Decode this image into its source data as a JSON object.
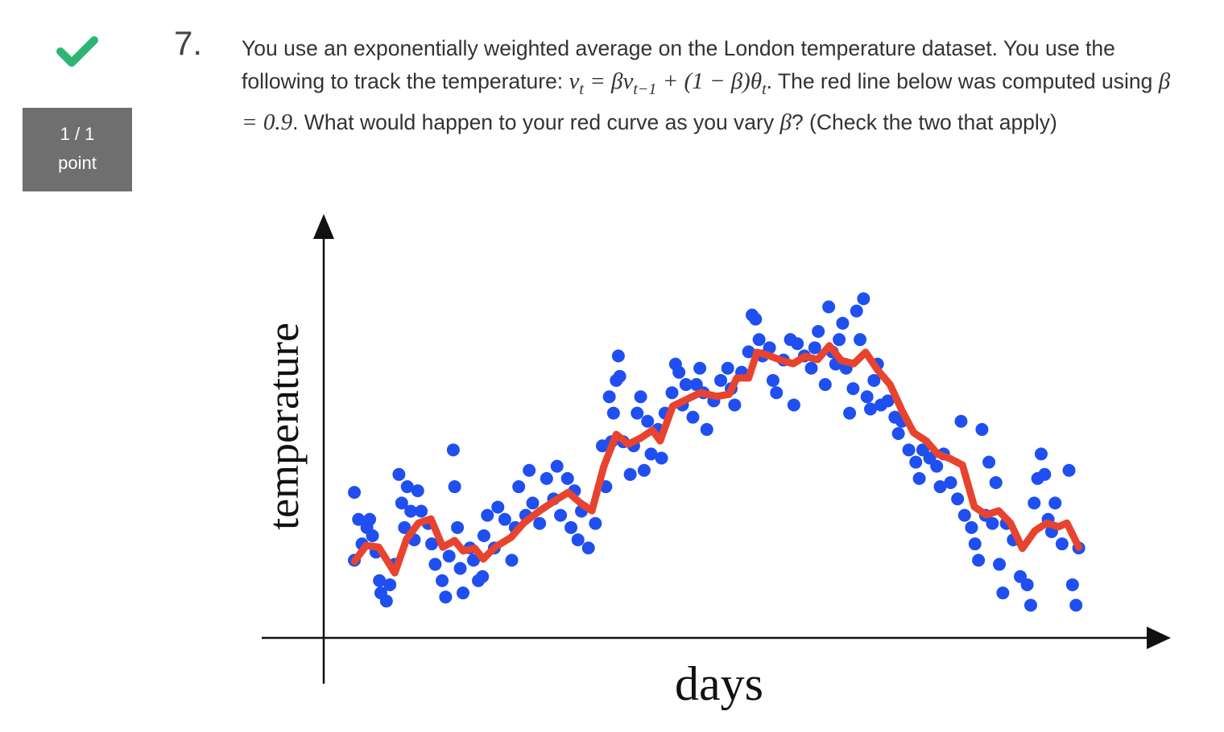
{
  "question": {
    "number": "7.",
    "score": "1 / 1",
    "score_unit": "point",
    "stem": [
      "You use an exponentially weighted average on the London temperature dataset. You use the following to track the temperature: ",
      "v",
      "t",
      " = β",
      "v",
      "t−1",
      " + (1 − β)θ",
      "t",
      ". The red line below was computed using ",
      "β = 0.9",
      ". What would happen to your red curve as you vary ",
      "β",
      "? (Check the two that apply)"
    ]
  },
  "chart_data": {
    "type": "scatter",
    "xlabel": "days",
    "ylabel": "temperature",
    "xlim": [
      0,
      120
    ],
    "ylim": [
      0,
      100
    ],
    "series": [
      {
        "type": "scatter",
        "color": "#1f4ff0",
        "x": [
          4.4,
          4.4,
          5,
          5.5,
          6.2,
          6.6,
          7,
          7.5,
          8,
          8.2,
          9,
          9.5,
          10.2,
          10.8,
          11.2,
          11.6,
          12,
          12.5,
          13,
          13.5,
          14,
          15,
          15.5,
          16,
          17,
          17.5,
          18,
          18.6,
          18.8,
          19.2,
          19.6,
          20,
          21,
          21.5,
          22.2,
          22.8,
          23,
          23.5,
          24.5,
          25,
          26,
          27,
          27.5,
          28,
          29,
          29.5,
          30,
          31,
          32,
          33,
          33.5,
          34,
          35,
          35.5,
          36,
          36.5,
          37,
          38,
          39,
          40,
          40.5,
          41,
          41.3,
          41.6,
          42,
          42.3,
          42.5,
          43,
          44,
          44.5,
          45,
          45.5,
          46,
          46.5,
          47,
          48,
          48.5,
          49,
          50,
          50.5,
          51,
          51.5,
          52,
          53,
          53.5,
          54,
          54.5,
          55,
          56,
          57,
          58,
          58.5,
          59,
          60,
          61,
          61.5,
          62,
          62.5,
          63,
          64,
          64.5,
          65,
          66,
          67,
          67.5,
          68,
          69,
          70,
          70.5,
          71,
          72,
          72.5,
          73,
          73.5,
          74,
          74.5,
          75,
          75.5,
          76,
          76.5,
          77,
          77.5,
          78,
          78.5,
          79,
          79.5,
          80,
          81,
          82,
          82.5,
          83,
          84,
          85,
          85.5,
          86,
          87,
          88,
          88.5,
          89,
          90,
          91,
          91.5,
          92,
          93,
          93.5,
          94,
          94.5,
          95,
          95.5,
          96,
          96.5,
          97,
          97.5,
          98,
          99,
          100,
          101,
          101.5,
          102,
          102.5,
          103,
          103.5,
          104,
          104.5,
          105,
          106,
          107,
          107.5,
          108,
          108.4
        ],
        "values": [
          35.6,
          19,
          29,
          23,
          27,
          29,
          25,
          21,
          14,
          11,
          9,
          13,
          18,
          40,
          33,
          27,
          37,
          31,
          24,
          36,
          31,
          28,
          23,
          18,
          14,
          10,
          20,
          46,
          37,
          27,
          17,
          11,
          22,
          19,
          14,
          15,
          25,
          30,
          22,
          32,
          29,
          19,
          27,
          37,
          30,
          41,
          33,
          28,
          39,
          34,
          42,
          30,
          39,
          27,
          36,
          24,
          31,
          22,
          28,
          47,
          37,
          59,
          48,
          55,
          63,
          69,
          64,
          48,
          40,
          47,
          55,
          59,
          41,
          53,
          45,
          51,
          44,
          55,
          60,
          67,
          65,
          57,
          62,
          54,
          62,
          66,
          60,
          51,
          58,
          63,
          66,
          61,
          57,
          65,
          70,
          79,
          78,
          73,
          69,
          71,
          63,
          60,
          68,
          73,
          57,
          72,
          69,
          66,
          71,
          75,
          62,
          81,
          70,
          67,
          73,
          77,
          66,
          55,
          61,
          80,
          73,
          83,
          59,
          56,
          63,
          67,
          57,
          58,
          54,
          50,
          53,
          46,
          43,
          39,
          46,
          44,
          42,
          37,
          45,
          38,
          34,
          53,
          30,
          27,
          23,
          19,
          51,
          30,
          43,
          28,
          38,
          18,
          11,
          28,
          24,
          15,
          13,
          8,
          33,
          39,
          45,
          40,
          29,
          26,
          33,
          23,
          41,
          13,
          8,
          22
        ]
      },
      {
        "type": "line",
        "color": "#e8432e",
        "x": [
          4.4,
          6.1,
          7.9,
          10.2,
          11.9,
          13.6,
          15.4,
          17.1,
          18.8,
          20,
          21.7,
          22.9,
          24.6,
          26.9,
          28.7,
          31,
          33.3,
          35.1,
          36.8,
          38.5,
          40.2,
          42,
          43.7,
          45.4,
          47.2,
          48.3,
          50.1,
          51.8,
          54.1,
          56.4,
          58.2,
          59.3,
          61,
          62.2,
          63.9,
          65.7,
          67.4,
          69.1,
          70.9,
          72.6,
          74.3,
          76.1,
          77.8,
          79.5,
          81.3,
          83,
          84.7,
          86.5,
          88.2,
          89.9,
          91.7,
          93.4,
          95.1,
          96.9,
          98.6,
          100.3,
          102.1,
          103.8,
          105.5,
          106.7,
          108.4
        ],
        "values": [
          18.7,
          22.6,
          22.2,
          15.9,
          24.2,
          28.1,
          29.1,
          22.2,
          23.8,
          21.3,
          21.9,
          19.3,
          22.2,
          24.6,
          28.1,
          31.1,
          33.7,
          35.6,
          33.1,
          31.1,
          41.9,
          49.8,
          47.4,
          48.8,
          50.8,
          48.2,
          56.7,
          58.1,
          60,
          59.1,
          59.6,
          63.6,
          63.6,
          69.9,
          69.1,
          67.9,
          67.1,
          68.9,
          68.1,
          71.5,
          67.9,
          67.1,
          69.9,
          65.6,
          62,
          55.7,
          50.2,
          48.2,
          44.9,
          43.9,
          42.3,
          32.1,
          30.1,
          31.1,
          28.1,
          21.9,
          26.2,
          28.1,
          27.2,
          28.1,
          22.2
        ]
      }
    ]
  }
}
